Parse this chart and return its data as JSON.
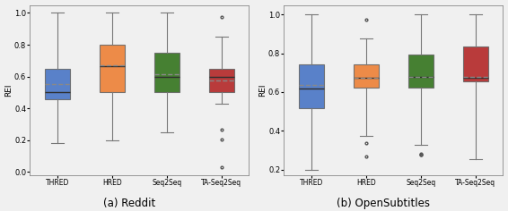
{
  "reddit": {
    "categories": [
      "THRED",
      "HRED",
      "Seq2Seq",
      "TA-Seq2Seq"
    ],
    "colors": [
      "#4472C4",
      "#ED7D31",
      "#2E7118",
      "#B22222"
    ],
    "boxes": [
      {
        "q1": 0.46,
        "median": 0.5,
        "q3": 0.65,
        "mean": 0.555,
        "whislo": 0.18,
        "whishi": 1.0,
        "fliers": []
      },
      {
        "q1": 0.5,
        "median": 0.665,
        "q3": 0.8,
        "mean": 0.67,
        "whislo": 0.2,
        "whishi": 1.0,
        "fliers": []
      },
      {
        "q1": 0.5,
        "median": 0.6,
        "q3": 0.75,
        "mean": 0.615,
        "whislo": 0.25,
        "whishi": 1.0,
        "fliers": []
      },
      {
        "q1": 0.5,
        "median": 0.6,
        "q3": 0.65,
        "mean": 0.575,
        "whislo": 0.43,
        "whishi": 0.85,
        "fliers": [
          0.975,
          0.265,
          0.205,
          0.03
        ]
      }
    ],
    "ylabel": "REI",
    "ylim": [
      -0.02,
      1.05
    ],
    "yticks": [
      0.0,
      0.2,
      0.4,
      0.6,
      0.8,
      1.0
    ],
    "caption": "(a) Reddit"
  },
  "opensubtitles": {
    "categories": [
      "THRED",
      "HRED",
      "Seq2Seq",
      "TA-Seq2Seq"
    ],
    "colors": [
      "#4472C4",
      "#ED7D31",
      "#2E7118",
      "#B22222"
    ],
    "boxes": [
      {
        "q1": 0.515,
        "median": 0.62,
        "q3": 0.745,
        "mean": 0.635,
        "whislo": 0.2,
        "whishi": 1.0,
        "fliers": []
      },
      {
        "q1": 0.625,
        "median": 0.675,
        "q3": 0.745,
        "mean": 0.675,
        "whislo": 0.375,
        "whishi": 0.875,
        "fliers": [
          0.975,
          0.335,
          0.265
        ]
      },
      {
        "q1": 0.625,
        "median": 0.68,
        "q3": 0.795,
        "mean": 0.68,
        "whislo": 0.325,
        "whishi": 1.0,
        "fliers": [
          0.275,
          0.275,
          0.28
        ]
      },
      {
        "q1": 0.655,
        "median": 0.675,
        "q3": 0.835,
        "mean": 0.68,
        "whislo": 0.255,
        "whishi": 1.0,
        "fliers": []
      }
    ],
    "ylabel": "REI",
    "ylim": [
      0.17,
      1.05
    ],
    "yticks": [
      0.2,
      0.4,
      0.6,
      0.8,
      1.0
    ],
    "caption": "(b) OpenSubtitles"
  },
  "bg_color": "#f0f0f0",
  "median_color": "#2f2f2f",
  "mean_color": "#888888",
  "whisker_color": "#777777",
  "flier_color": "#555555"
}
